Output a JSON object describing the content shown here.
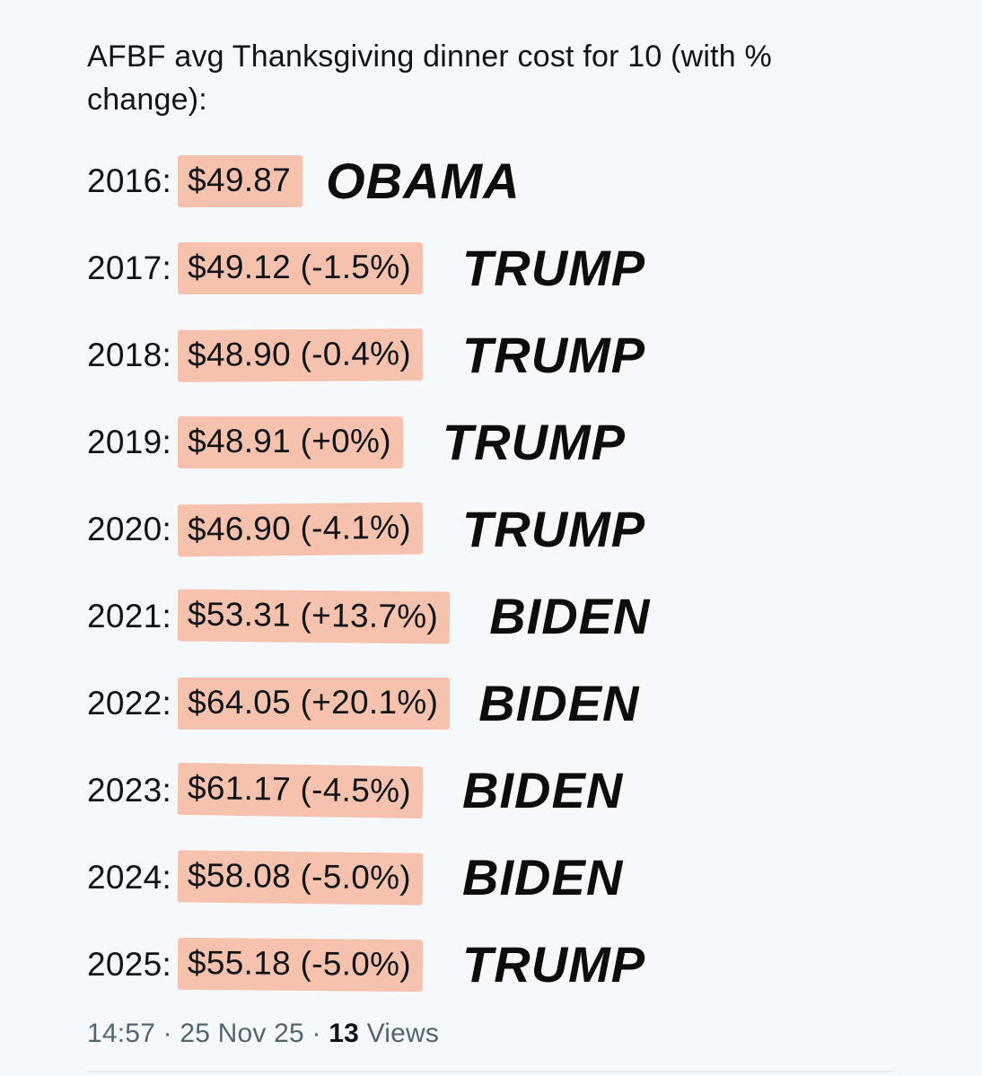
{
  "post": {
    "title": "AFBF avg Thanksgiving dinner cost for 10 (with % change):",
    "rows": [
      {
        "year": "2016:",
        "price": "$49.87",
        "president": "OBAMA"
      },
      {
        "year": "2017:",
        "price": "$49.12 (-1.5%)",
        "president": "TRUMP"
      },
      {
        "year": "2018:",
        "price": "$48.90 (-0.4%)",
        "president": "TRUMP"
      },
      {
        "year": "2019:",
        "price": "$48.91 (+0%)",
        "president": "TRUMP"
      },
      {
        "year": "2020:",
        "price": "$46.90 (-4.1%)",
        "president": "TRUMP"
      },
      {
        "year": "2021:",
        "price": "$53.31 (+13.7%)",
        "president": "BIDEN"
      },
      {
        "year": "2022:",
        "price": "$64.05 (+20.1%)",
        "president": "BIDEN"
      },
      {
        "year": "2023:",
        "price": "$61.17 (-4.5%)",
        "president": "BIDEN"
      },
      {
        "year": "2024:",
        "price": "$58.08 (-5.0%)",
        "president": "BIDEN"
      },
      {
        "year": "2025:",
        "price": "$55.18 (-5.0%)",
        "president": "TRUMP"
      }
    ],
    "footer": {
      "time": "14:57",
      "separator": "·",
      "date": "25 Nov 25",
      "views_count": "13",
      "views_label": "Views"
    }
  },
  "colors": {
    "background": "#f5f9fc",
    "highlight": "#f6c2ae",
    "text": "#0f1419",
    "muted": "#536471",
    "divider": "#e9edf0"
  }
}
